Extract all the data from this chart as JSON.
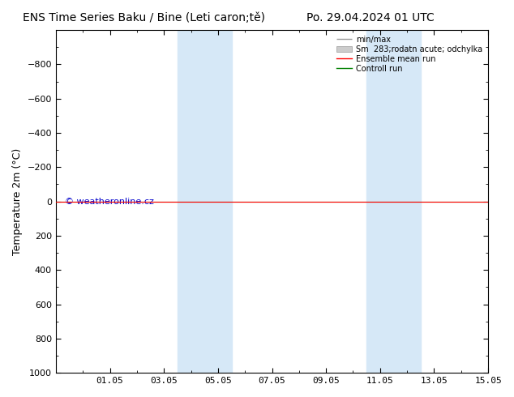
{
  "title_left": "ENS Time Series Baku / Bine (Leti caron;tě)",
  "title_right": "Po. 29.04.2024 01 UTC",
  "ylabel": "Temperature 2m (°C)",
  "ylim_top": -1000,
  "ylim_bottom": 1000,
  "yticks": [
    -800,
    -600,
    -400,
    -200,
    0,
    200,
    400,
    600,
    800,
    1000
  ],
  "xlim_left": 0,
  "xlim_right": 16,
  "xtick_labels": [
    "01.05",
    "03.05",
    "05.05",
    "07.05",
    "09.05",
    "11.05",
    "13.05",
    "15.05"
  ],
  "xtick_positions": [
    2,
    4,
    6,
    8,
    10,
    12,
    14,
    16
  ],
  "shading_bands": [
    {
      "x_start": 4.5,
      "x_end": 5.5
    },
    {
      "x_start": 5.5,
      "x_end": 6.5
    },
    {
      "x_start": 11.5,
      "x_end": 12.5
    },
    {
      "x_start": 12.5,
      "x_end": 13.5
    }
  ],
  "shading_color": "#d6e8f7",
  "ensemble_mean_color": "#ff0000",
  "control_run_color": "#008000",
  "minmax_color": "#999999",
  "std_color": "#cccccc",
  "watermark": "© weatheronline.cz",
  "watermark_color": "#0000cc",
  "title_fontsize": 10,
  "axis_label_fontsize": 9,
  "tick_fontsize": 8,
  "legend_fontsize": 7,
  "bg_color": "#ffffff"
}
